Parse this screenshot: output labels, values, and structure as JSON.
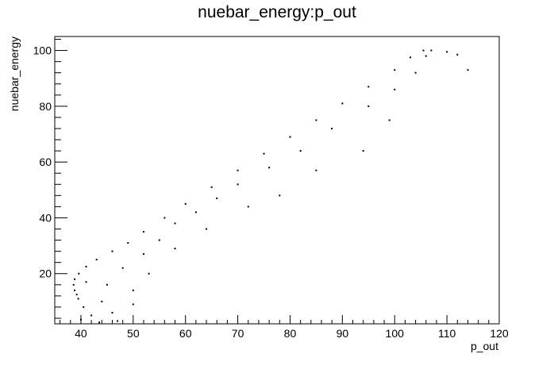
{
  "chart_data": {
    "type": "scatter",
    "title": "nuebar_energy:p_out",
    "xlabel": "p_out",
    "ylabel": "nuebar_energy",
    "xlim": [
      35,
      120
    ],
    "ylim": [
      2,
      105
    ],
    "x_ticks": [
      40,
      50,
      60,
      70,
      80,
      90,
      100,
      110,
      120
    ],
    "y_ticks": [
      20,
      40,
      60,
      80,
      100
    ],
    "grid": false,
    "legend": "none",
    "marker_color": "#000000",
    "series": [
      {
        "points_estimated": [
          [
            43.5,
            2.5
          ],
          [
            42.0,
            5.0
          ],
          [
            40.5,
            8.0
          ],
          [
            39.5,
            11.0
          ],
          [
            38.8,
            14.0
          ],
          [
            38.6,
            16.0
          ],
          [
            38.8,
            18.0
          ],
          [
            39.6,
            20.0
          ],
          [
            41.0,
            22.5
          ],
          [
            43.0,
            25.0
          ],
          [
            46.0,
            28.0
          ],
          [
            49.0,
            31.0
          ],
          [
            52.0,
            35.0
          ],
          [
            56.0,
            40.0
          ],
          [
            60.0,
            45.0
          ],
          [
            65.0,
            51.0
          ],
          [
            70.0,
            57.0
          ],
          [
            75.0,
            63.0
          ],
          [
            80.0,
            69.0
          ],
          [
            85.0,
            75.0
          ],
          [
            90.0,
            81.0
          ],
          [
            95.0,
            87.0
          ],
          [
            100.0,
            93.0
          ],
          [
            103.0,
            97.5
          ],
          [
            105.5,
            100.0
          ],
          [
            44.0,
            10.0
          ],
          [
            46.0,
            6.0
          ],
          [
            45.0,
            16.0
          ],
          [
            48.0,
            22.0
          ],
          [
            50.0,
            14.0
          ],
          [
            52.0,
            27.0
          ],
          [
            55.0,
            32.0
          ],
          [
            58.0,
            38.0
          ],
          [
            62.0,
            42.0
          ],
          [
            66.0,
            47.0
          ],
          [
            70.0,
            52.0
          ],
          [
            76.0,
            58.0
          ],
          [
            82.0,
            64.0
          ],
          [
            88.0,
            72.0
          ],
          [
            95.0,
            80.0
          ],
          [
            100.0,
            86.0
          ],
          [
            104.0,
            92.0
          ],
          [
            106.0,
            98.0
          ],
          [
            107.0,
            100.0
          ],
          [
            110.0,
            99.5
          ],
          [
            112.0,
            98.5
          ],
          [
            114.0,
            93.0
          ],
          [
            99.0,
            75.0
          ],
          [
            94.0,
            64.0
          ],
          [
            85.0,
            57.0
          ],
          [
            78.0,
            48.0
          ],
          [
            72.0,
            44.0
          ],
          [
            64.0,
            36.0
          ],
          [
            58.0,
            29.0
          ],
          [
            53.0,
            20.0
          ],
          [
            50.0,
            9.0
          ],
          [
            47.0,
            3.0
          ],
          [
            40.0,
            3.5
          ],
          [
            41.0,
            17.0
          ],
          [
            39.2,
            12.5
          ]
        ]
      }
    ]
  }
}
